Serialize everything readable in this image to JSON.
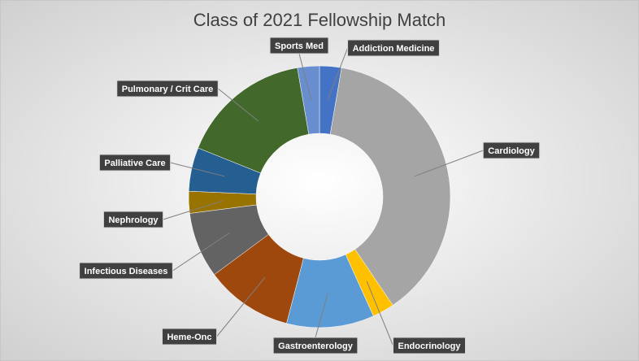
{
  "chart_data": {
    "type": "donut",
    "title": "Class of 2021 Fellowship Match",
    "categories": [
      "Addiction Medicine",
      "Cardiology",
      "Endocrinology",
      "Gastroenterology",
      "Heme-Onc",
      "Infectious Diseases",
      "Nephrology",
      "Palliative Care",
      "Pulmonary / Crit Care",
      "Sports Med"
    ],
    "values": [
      1,
      14,
      1,
      4,
      4,
      3,
      1,
      2,
      6,
      1
    ],
    "colors": [
      "#4472c4",
      "#a5a5a5",
      "#ffc000",
      "#5b9bd5",
      "#9e480e",
      "#636363",
      "#997300",
      "#255e91",
      "#43682b",
      "#698ed0"
    ]
  }
}
